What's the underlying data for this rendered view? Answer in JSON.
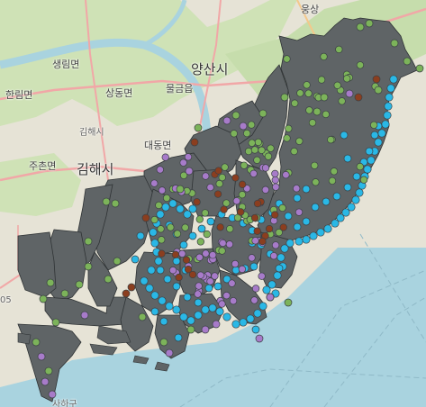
{
  "map": {
    "place_labels": {
      "saengrim": "생림면",
      "hallim": "한림면",
      "sangdong": "상동면",
      "gimhae_si_small": "김해시",
      "daedong": "대동면",
      "juchon": "주촌면",
      "gimhae_si": "김해시",
      "yangsan_si": "양산시",
      "mulgeum": "물금읍",
      "ungsang": "웅상",
      "saha_gu": "사하구",
      "road_05": "05"
    },
    "colors": {
      "water": "#a9d3df",
      "land": "#e8e4d8",
      "green_area": "#c9dfb0",
      "district_fill": "#5f6466",
      "district_stroke": "#2f3335",
      "marker_cyan": "#2ab8e6",
      "marker_green": "#7cb35a",
      "marker_purple": "#a77bc9",
      "marker_brown": "#8b3e1f"
    },
    "marker_categories": [
      "cyan",
      "green",
      "purple",
      "brown"
    ]
  }
}
